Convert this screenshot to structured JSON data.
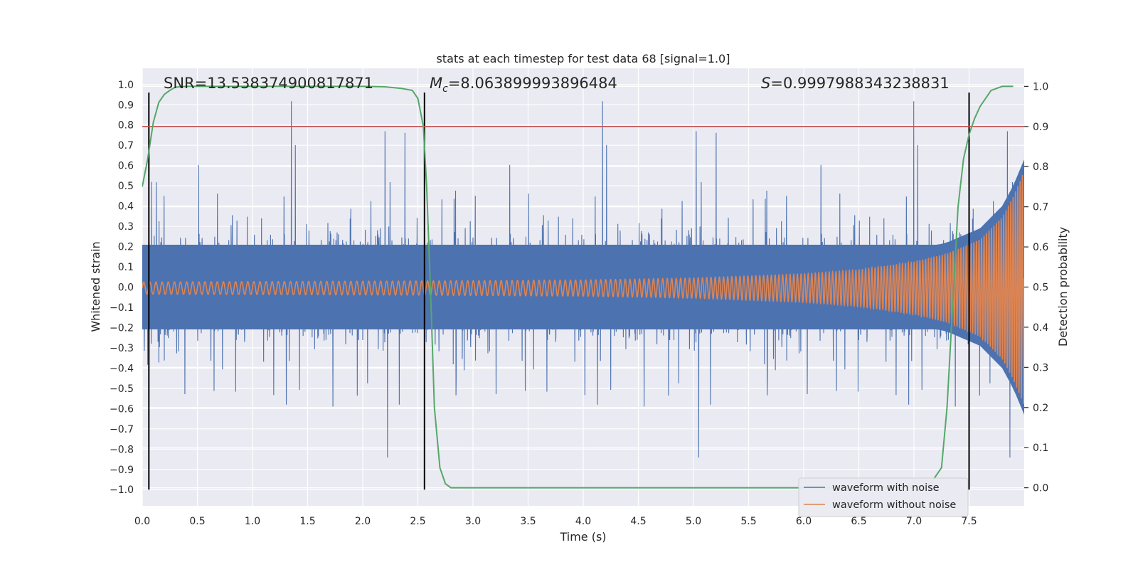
{
  "chart_data": {
    "type": "line",
    "title": "stats at each timestep for test data 68 [signal=1.0]",
    "xlabel": "Time (s)",
    "ylabel_left": "Whitened strain",
    "ylabel_right": "Detection probability",
    "xlim": [
      0.0,
      8.0
    ],
    "ylim_left": [
      -1.08,
      1.08
    ],
    "ylim_right": [
      -0.045,
      1.045
    ],
    "x_ticks": [
      "0.0",
      "0.5",
      "1.0",
      "1.5",
      "2.0",
      "2.5",
      "3.0",
      "3.5",
      "4.0",
      "4.5",
      "5.0",
      "5.5",
      "6.0",
      "6.5",
      "7.0",
      "7.5"
    ],
    "x_tick_values": [
      0.0,
      0.5,
      1.0,
      1.5,
      2.0,
      2.5,
      3.0,
      3.5,
      4.0,
      4.5,
      5.0,
      5.5,
      6.0,
      6.5,
      7.0,
      7.5
    ],
    "y_left_ticks": [
      "1.0",
      "0.9",
      "0.8",
      "0.7",
      "0.6",
      "0.5",
      "0.4",
      "0.3",
      "0.2",
      "0.1",
      "0.0",
      "−0.1",
      "−0.2",
      "−0.3",
      "−0.4",
      "−0.5",
      "−0.6",
      "−0.7",
      "−0.8",
      "−0.9",
      "−1.0"
    ],
    "y_left_tick_values": [
      1.0,
      0.9,
      0.8,
      0.7,
      0.6,
      0.5,
      0.4,
      0.3,
      0.2,
      0.1,
      0.0,
      -0.1,
      -0.2,
      -0.3,
      -0.4,
      -0.5,
      -0.6,
      -0.7,
      -0.8,
      -0.9,
      -1.0
    ],
    "y_right_ticks": [
      "1.0",
      "0.9",
      "0.8",
      "0.7",
      "0.6",
      "0.5",
      "0.4",
      "0.3",
      "0.2",
      "0.1",
      "0.0"
    ],
    "y_right_tick_values": [
      1.0,
      0.9,
      0.8,
      0.7,
      0.6,
      0.5,
      0.4,
      0.3,
      0.2,
      0.1,
      0.0
    ],
    "grid": true,
    "legend_position": "bottom-right",
    "series": [
      {
        "name": "waveform with noise",
        "color": "#4c72b0",
        "axis": "left",
        "envelope_note": "dense noisy strain, roughly between -0.5 and 0.6 with spikes to ±1",
        "band_pos": 0.38,
        "band_neg": -0.38,
        "spike_max": 0.96,
        "spike_min": -0.99
      },
      {
        "name": "waveform without noise",
        "color": "#dd8452",
        "axis": "left",
        "amplitude_points": {
          "x": [
            0.0,
            2.5,
            4.0,
            5.0,
            6.0,
            6.5,
            7.0,
            7.3,
            7.6,
            7.8,
            7.9,
            8.0
          ],
          "y": [
            0.03,
            0.035,
            0.04,
            0.05,
            0.07,
            0.09,
            0.13,
            0.17,
            0.24,
            0.35,
            0.45,
            0.58
          ]
        },
        "frequency_start": 18,
        "frequency_end": 48
      },
      {
        "name": "",
        "color": "#55a868",
        "axis": "right",
        "x": [
          0.0,
          0.05,
          0.1,
          0.15,
          0.2,
          0.25,
          0.3,
          0.4,
          0.5,
          1.0,
          1.5,
          2.0,
          2.2,
          2.35,
          2.45,
          2.5,
          2.55,
          2.58,
          2.62,
          2.65,
          2.7,
          2.75,
          2.8,
          2.9,
          3.0,
          4.0,
          5.0,
          6.0,
          7.0,
          7.15,
          7.25,
          7.3,
          7.35,
          7.4,
          7.45,
          7.5,
          7.55,
          7.6,
          7.65,
          7.7,
          7.8,
          7.9
        ],
        "y": [
          0.75,
          0.82,
          0.91,
          0.96,
          0.98,
          0.99,
          0.998,
          1.0,
          1.0,
          1.0,
          1.0,
          1.0,
          0.999,
          0.995,
          0.99,
          0.97,
          0.9,
          0.75,
          0.45,
          0.2,
          0.05,
          0.01,
          0.0,
          0.0,
          0.0,
          0.0,
          0.0,
          0.0,
          0.0,
          0.01,
          0.05,
          0.2,
          0.45,
          0.7,
          0.82,
          0.88,
          0.92,
          0.95,
          0.97,
          0.99,
          1.0,
          1.0
        ]
      }
    ],
    "threshold_line": {
      "axis": "right",
      "value": 0.9,
      "color": "#c44e52"
    },
    "vertical_lines": {
      "x": [
        0.06,
        2.56,
        7.5
      ],
      "color": "#000000",
      "ymin": -1.0,
      "ymax": 0.96
    },
    "annotations": {
      "snr": "SNR=13.538374900817871",
      "mc_symbol": "M",
      "mc_sub": "c",
      "mc_value": "=8.063899993896484",
      "s_symbol": "S",
      "s_value": "=0.9997988343238831"
    },
    "colors": {
      "axes_bg": "#eaeaf2",
      "grid": "#ffffff"
    }
  }
}
